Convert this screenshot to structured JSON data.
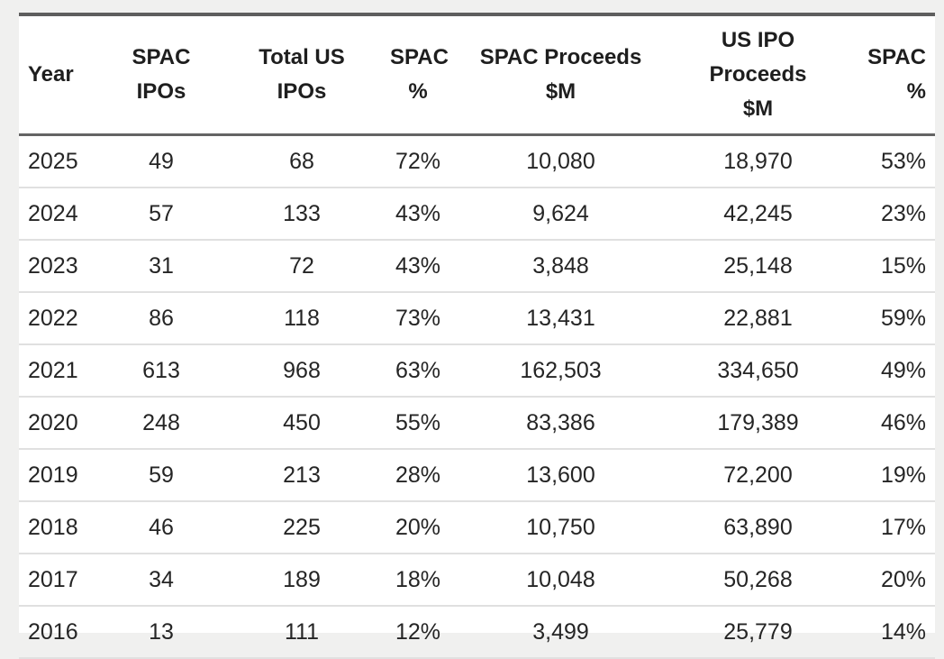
{
  "style": {
    "page_background": "#f0f0ef",
    "table_background": "#ffffff",
    "top_border_color": "#5e5e5e",
    "header_rule_color": "#646464",
    "row_rule_color": "#e0e0e0",
    "text_color": "#252525"
  },
  "chart_data": {
    "type": "table",
    "columns": [
      "Year",
      "SPAC IPOs",
      "Total US IPOs",
      "SPAC %",
      "SPAC Proceeds $M",
      "US IPO Proceeds $M",
      "SPAC %"
    ],
    "header_display": [
      "Year",
      "SPAC IPOs",
      "Total US\nIPOs",
      "SPAC\n%",
      "SPAC Proceeds\n$M",
      "US IPO Proceeds\n$M",
      "SPAC\n%"
    ],
    "rows": [
      [
        "2025",
        "49",
        "68",
        "72%",
        "10,080",
        "18,970",
        "53%"
      ],
      [
        "2024",
        "57",
        "133",
        "43%",
        "9,624",
        "42,245",
        "23%"
      ],
      [
        "2023",
        "31",
        "72",
        "43%",
        "3,848",
        "25,148",
        "15%"
      ],
      [
        "2022",
        "86",
        "118",
        "73%",
        "13,431",
        "22,881",
        "59%"
      ],
      [
        "2021",
        "613",
        "968",
        "63%",
        "162,503",
        "334,650",
        "49%"
      ],
      [
        "2020",
        "248",
        "450",
        "55%",
        "83,386",
        "179,389",
        "46%"
      ],
      [
        "2019",
        "59",
        "213",
        "28%",
        "13,600",
        "72,200",
        "19%"
      ],
      [
        "2018",
        "46",
        "225",
        "20%",
        "10,750",
        "63,890",
        "17%"
      ],
      [
        "2017",
        "34",
        "189",
        "18%",
        "10,048",
        "50,268",
        "20%"
      ],
      [
        "2016",
        "13",
        "111",
        "12%",
        "3,499",
        "25,779",
        "14%"
      ]
    ]
  }
}
